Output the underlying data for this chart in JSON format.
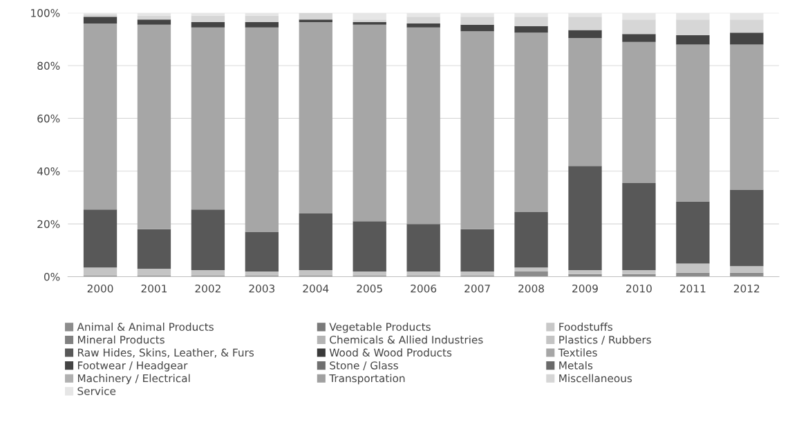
{
  "chart_data": {
    "type": "bar",
    "stacked": true,
    "categories": [
      "2000",
      "2001",
      "2002",
      "2003",
      "2004",
      "2005",
      "2006",
      "2007",
      "2008",
      "2009",
      "2010",
      "2011",
      "2012"
    ],
    "ylim": [
      0,
      100
    ],
    "yticks": [
      {
        "value": 0,
        "label": "0%"
      },
      {
        "value": 20,
        "label": "20%"
      },
      {
        "value": 40,
        "label": "40%"
      },
      {
        "value": 60,
        "label": "60%"
      },
      {
        "value": 80,
        "label": "80%"
      },
      {
        "value": 100,
        "label": "100%"
      }
    ],
    "grid": "y",
    "legend": "bottom",
    "series": [
      {
        "name": "Animal & Animal Products",
        "color": "#8c8c8c",
        "values": [
          0.5,
          0.5,
          0.5,
          0.5,
          0.5,
          0.5,
          0.5,
          0.5,
          2,
          1,
          1,
          1.5,
          1.5
        ]
      },
      {
        "name": "Vegetable Products",
        "color": "#7a7a7a",
        "values": [
          0,
          0,
          0,
          0,
          0,
          0,
          0,
          0,
          0,
          0,
          0,
          0,
          0
        ]
      },
      {
        "name": "Foodstuffs",
        "color": "#c8c8c8",
        "values": [
          0,
          0,
          0,
          0,
          0,
          0,
          0,
          0,
          0,
          0,
          0,
          0,
          0
        ]
      },
      {
        "name": "Mineral Products",
        "color": "#808080",
        "values": [
          0,
          0,
          0,
          0,
          0,
          0,
          0,
          0,
          0,
          0,
          0,
          0,
          0
        ]
      },
      {
        "name": "Chemicals & Allied Industries",
        "color": "#b4b4b4",
        "values": [
          0,
          0,
          0,
          0,
          0,
          0,
          0,
          0,
          0,
          0,
          0,
          0,
          0
        ]
      },
      {
        "name": "Plastics / Rubbers",
        "color": "#c4c4c4",
        "values": [
          3,
          2.5,
          2,
          1.5,
          2,
          1.5,
          1.5,
          1.5,
          1.5,
          1.5,
          1.5,
          3.5,
          2.5
        ]
      },
      {
        "name": "Raw Hides, Skins, Leather, & Furs",
        "color": "#585858",
        "values": [
          22,
          15,
          23,
          15,
          21.5,
          19,
          18,
          16,
          21,
          39.5,
          33,
          23.5,
          29
        ]
      },
      {
        "name": "Wood & Wood Products",
        "color": "#3a3a3a",
        "values": [
          0,
          0,
          0,
          0,
          0,
          0,
          0,
          0,
          0,
          0,
          0,
          0,
          0
        ]
      },
      {
        "name": "Textiles",
        "color": "#a6a6a6",
        "values": [
          70.5,
          77.5,
          69,
          77.5,
          72.5,
          74.5,
          74.5,
          75,
          68,
          48.5,
          53.5,
          59.5,
          55
        ]
      },
      {
        "name": "Footwear / Headgear",
        "color": "#444444",
        "values": [
          2.5,
          2,
          2,
          2,
          1,
          1,
          1.5,
          2.5,
          2.5,
          3,
          3,
          3.5,
          4.5
        ]
      },
      {
        "name": "Stone / Glass",
        "color": "#707070",
        "values": [
          0,
          0,
          0,
          0,
          0,
          0,
          0,
          0,
          0,
          0,
          0,
          0,
          0
        ]
      },
      {
        "name": "Metals",
        "color": "#6a6a6a",
        "values": [
          0,
          0,
          0,
          0,
          0,
          0,
          0,
          0,
          0,
          0,
          0,
          0,
          0
        ]
      },
      {
        "name": "Machinery / Electrical",
        "color": "#b0b0b0",
        "values": [
          0,
          0,
          0,
          0,
          0,
          0,
          0,
          0,
          0,
          0,
          0,
          0,
          0
        ]
      },
      {
        "name": "Transportation",
        "color": "#a0a0a0",
        "values": [
          0,
          0,
          0,
          0,
          0,
          0,
          0,
          0,
          0,
          0,
          0,
          0,
          0
        ]
      },
      {
        "name": "Miscellaneous",
        "color": "#d6d6d6",
        "values": [
          1,
          1.5,
          2.5,
          2.5,
          2.5,
          1,
          2.5,
          3,
          3.5,
          5,
          5.5,
          6,
          5
        ]
      },
      {
        "name": "Service",
        "color": "#e6e6e6",
        "values": [
          0.5,
          1,
          1,
          1,
          0,
          2.5,
          1.5,
          1.5,
          1.5,
          1.5,
          2.5,
          2.5,
          2.5
        ]
      }
    ]
  }
}
